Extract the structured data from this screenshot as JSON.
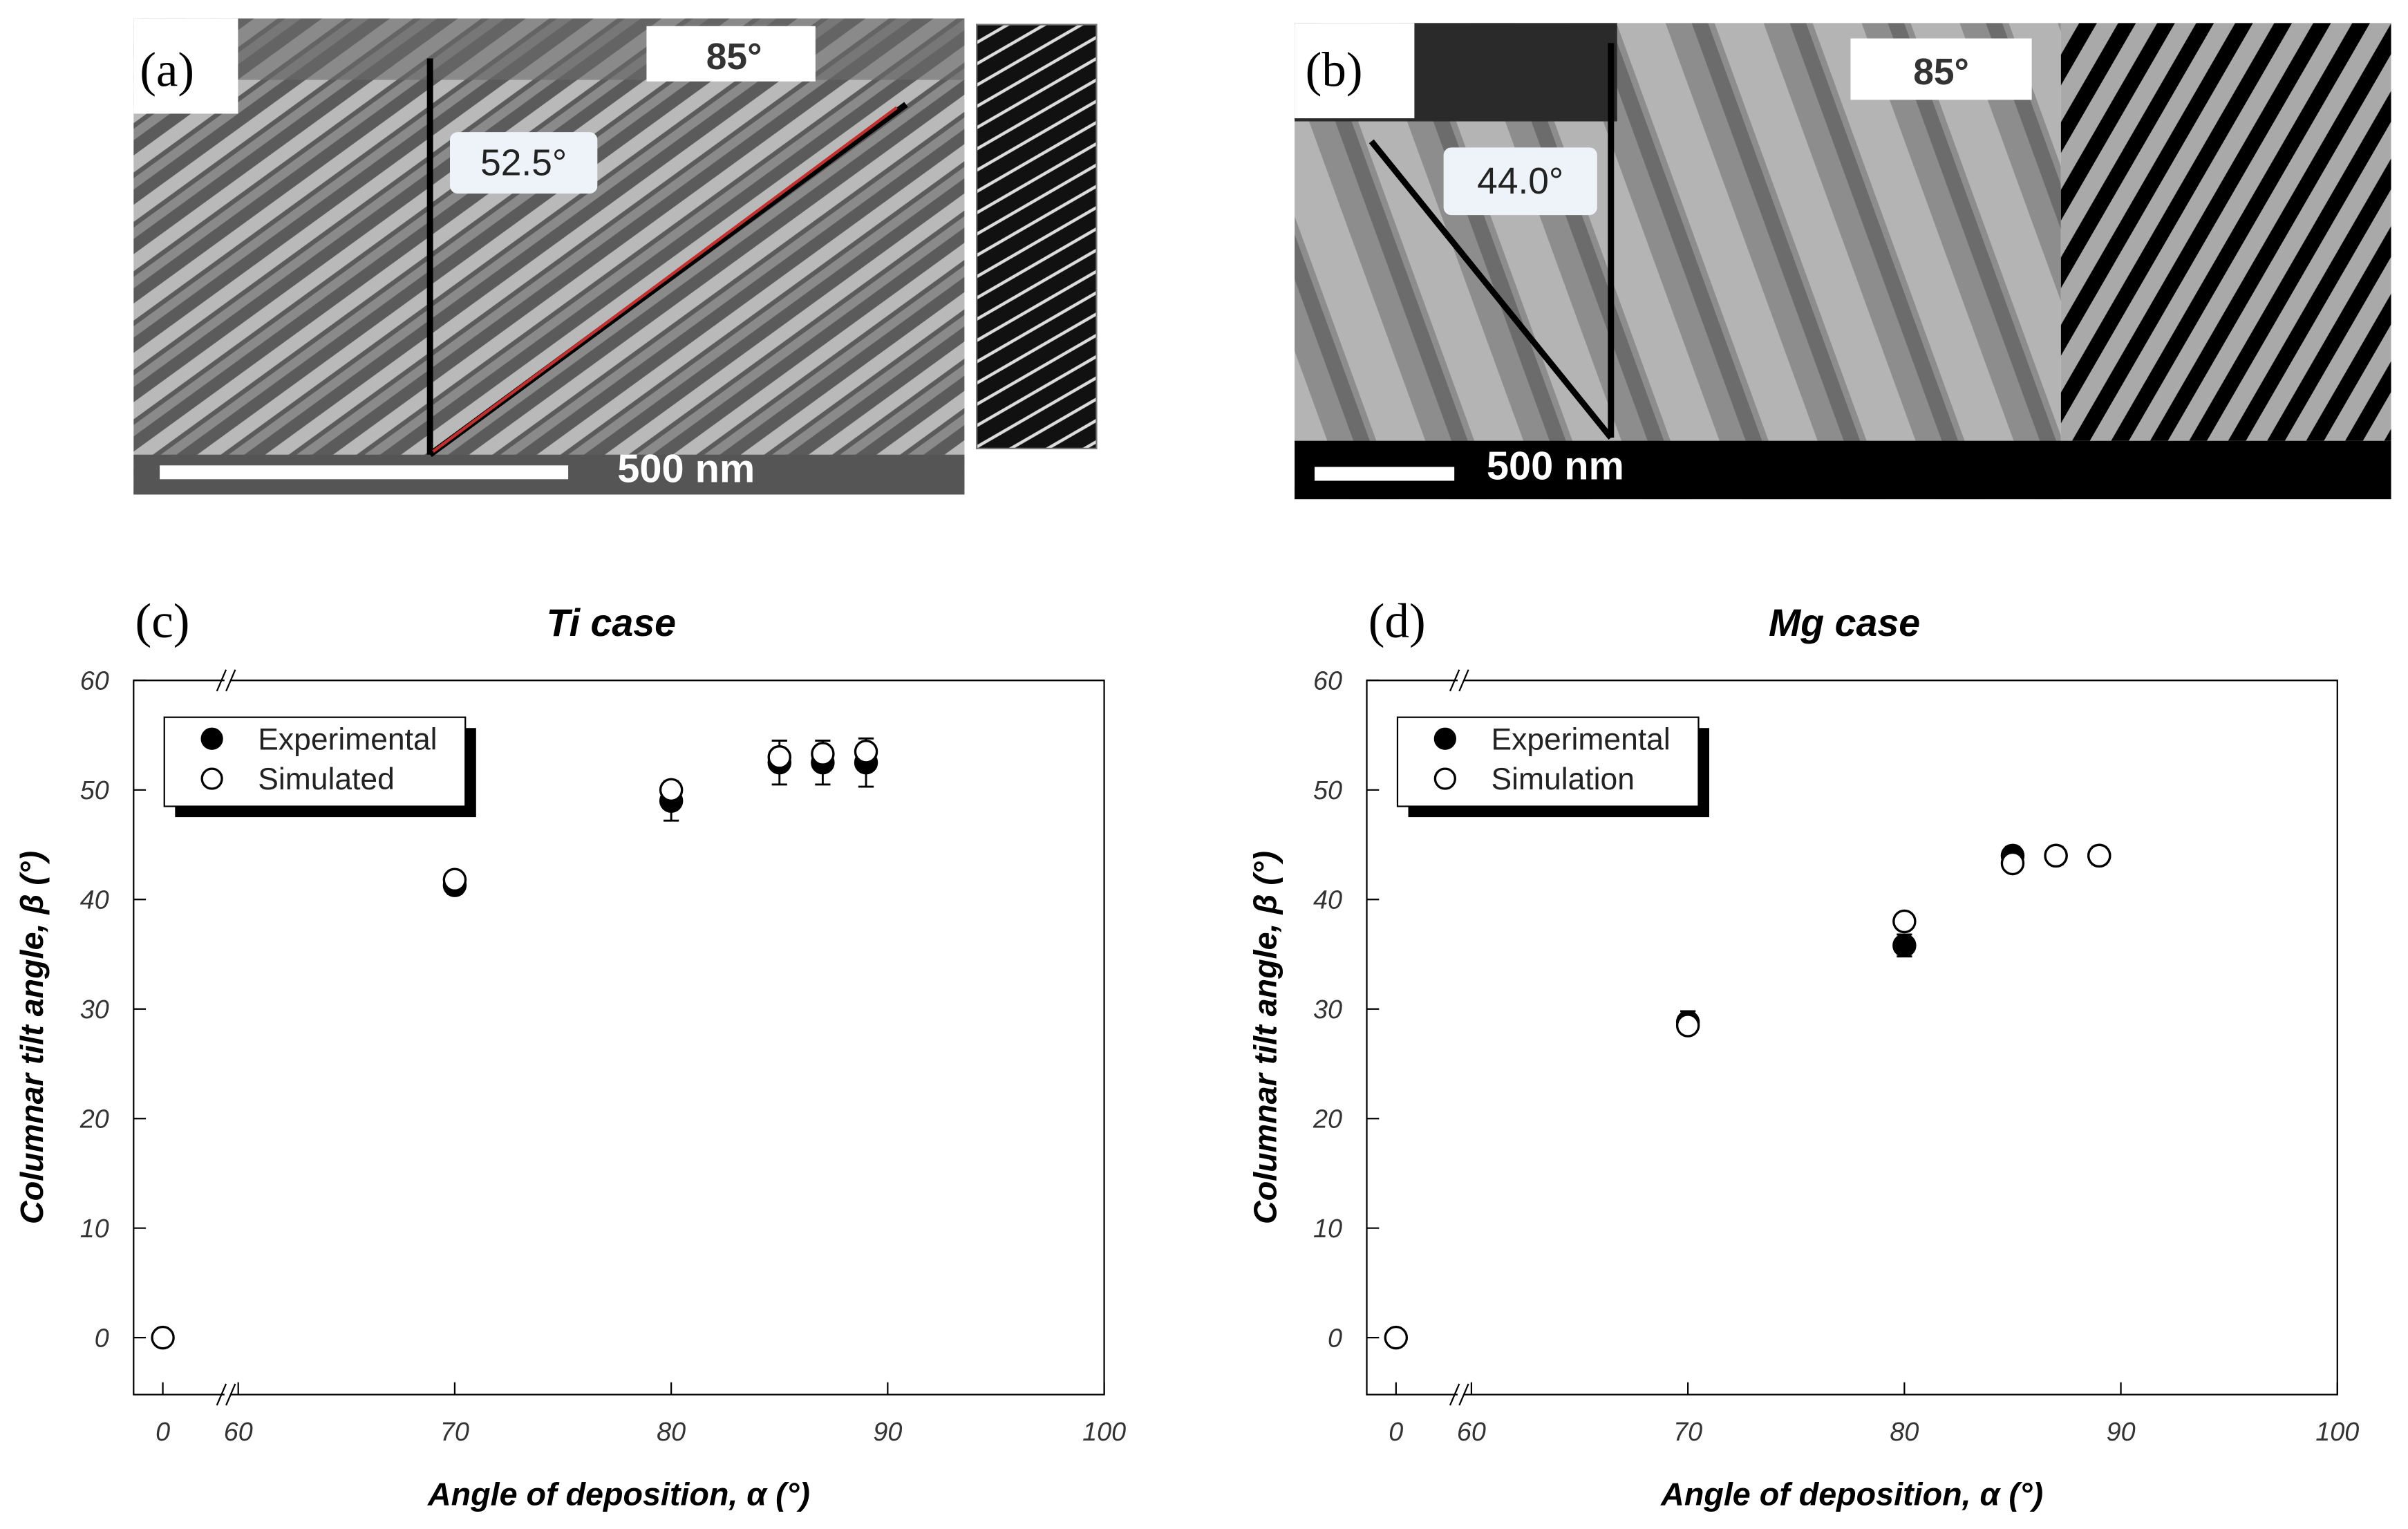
{
  "panels": [
    {
      "label": "(a)",
      "angle_label": "85°",
      "tilt_label": "52.5°",
      "scale_bar": "500 nm"
    },
    {
      "label": "(b)",
      "angle_label": "85°",
      "tilt_label": "44.0°",
      "scale_bar": "500 nm"
    }
  ],
  "chart_data": [
    {
      "type": "scatter",
      "panel_label": "(c)",
      "title": "Ti case",
      "x_label": "Angle of deposition, α (°)",
      "y_label": "Columnar tilt angle, β (°)",
      "xlim": [
        -1.35,
        100
      ],
      "xbreak": [
        2.85,
        59.65
      ],
      "ylim": [
        -5.2,
        60
      ],
      "xticks": [
        0,
        60,
        70,
        80,
        90,
        100
      ],
      "yticks": [
        0,
        10,
        20,
        30,
        40,
        50,
        60
      ],
      "legend": "upper left",
      "series": [
        {
          "name": "Experimental",
          "color": "#000000",
          "marker": "filled",
          "x": [
            70,
            80,
            85,
            87,
            89
          ],
          "values": [
            41.3,
            49,
            52.5,
            52.5,
            52.5
          ],
          "errors": [
            0.8,
            1.8,
            2,
            2,
            2.2
          ]
        },
        {
          "name": "Simulated",
          "color": "#ffffff",
          "marker": "open",
          "x": [
            0,
            70,
            80,
            85,
            87,
            89
          ],
          "values": [
            0,
            41.8,
            50,
            53,
            53.3,
            53.5
          ]
        }
      ]
    },
    {
      "type": "scatter",
      "panel_label": "(d)",
      "title": "Mg case",
      "x_label": "Angle of deposition, α (°)",
      "y_label": "Columnar tilt angle, β (°)",
      "xlim": [
        -1.35,
        100
      ],
      "xbreak": [
        2.85,
        59.65
      ],
      "ylim": [
        -5.2,
        60
      ],
      "xticks": [
        0,
        60,
        70,
        80,
        90,
        100
      ],
      "yticks": [
        0,
        10,
        20,
        30,
        40,
        50,
        60
      ],
      "legend": "upper left",
      "series": [
        {
          "name": "Experimental",
          "color": "#000000",
          "marker": "filled",
          "x": [
            70,
            80,
            85,
            87,
            89
          ],
          "values": [
            28.8,
            35.8,
            44,
            44,
            44
          ],
          "errors": [
            1,
            1,
            0.8,
            0.8,
            0.8
          ]
        },
        {
          "name": "Simulation",
          "color": "#ffffff",
          "marker": "open",
          "x": [
            0,
            70,
            80,
            85,
            87,
            89
          ],
          "values": [
            0,
            28.5,
            38,
            43.3,
            44,
            44
          ]
        }
      ]
    }
  ]
}
